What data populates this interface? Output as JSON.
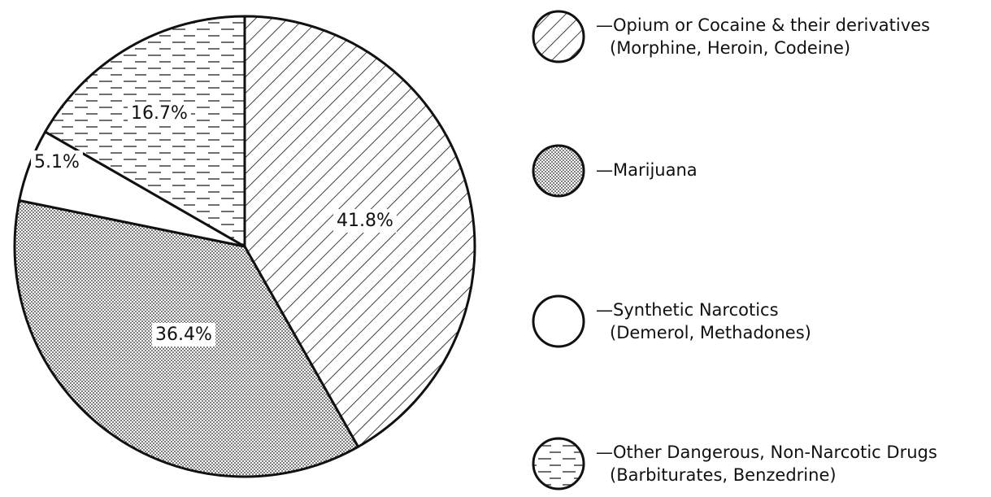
{
  "chart_data": {
    "type": "pie",
    "categories": [
      "—Opium or Cocaine & their derivatives",
      "—Marijuana",
      "—Synthetic Narcotics",
      "—Other Dangerous, Non-Narcotic Drugs"
    ],
    "category_notes": [
      "(Morphine, Heroin, Codeine)",
      null,
      "(Demerol, Methadones)",
      "(Barbiturates, Benzedrine)"
    ],
    "values": [
      41.8,
      36.4,
      5.1,
      16.7
    ],
    "value_labels": [
      "41.8%",
      "36.4%",
      "5.1%",
      "16.7%"
    ],
    "patterns": [
      "hatch",
      "dots",
      "none",
      "dashes"
    ],
    "start_angle": 0,
    "direction": "clockwise",
    "legend": "right"
  }
}
